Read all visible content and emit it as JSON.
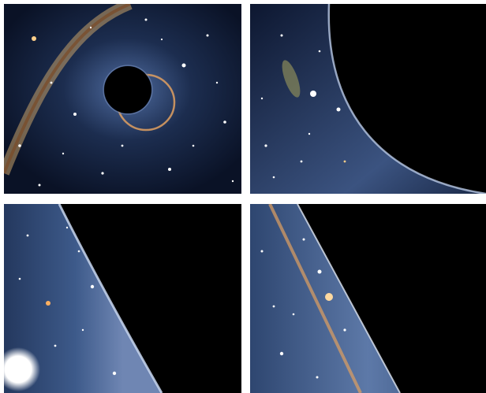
{
  "figure": {
    "background": "#ffffff",
    "panels": [
      {
        "id": "p1",
        "subject": "black-hole-with-einstein-ring",
        "description_color": "#1b2a4a"
      },
      {
        "id": "p2",
        "subject": "shadow-edge-with-lensed-galaxy",
        "description_color": "#1b2a4a"
      },
      {
        "id": "p3",
        "subject": "shadow-edge-with-bright-star",
        "description_color": "#1b2a4a"
      },
      {
        "id": "p4",
        "subject": "close-up-photon-ring",
        "description_color": "#1b2a4a"
      }
    ],
    "colors": {
      "sky_dark": "#0b1224",
      "sky_glow": "#3d5a8a",
      "shadow": "#000000",
      "ring": "#e0a060",
      "milky_way": "#c9a36a"
    }
  }
}
